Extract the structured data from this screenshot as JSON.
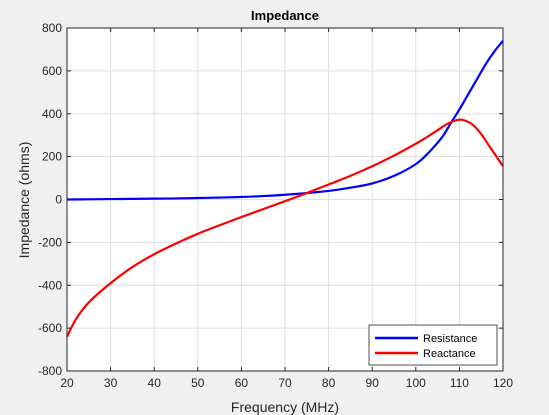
{
  "chart_data": {
    "type": "line",
    "title": "Impedance",
    "xlabel": "Frequency (MHz)",
    "ylabel": "Impedance (ohms)",
    "xlim": [
      20,
      120
    ],
    "ylim": [
      -800,
      800
    ],
    "xticks": [
      20,
      30,
      40,
      50,
      60,
      70,
      80,
      90,
      100,
      110,
      120
    ],
    "yticks": [
      -800,
      -600,
      -400,
      -200,
      0,
      200,
      400,
      600,
      800
    ],
    "grid": true,
    "legend_position": "bottom-right",
    "series": [
      {
        "name": "Resistance",
        "color": "#0000ff",
        "x": [
          20,
          25,
          30,
          35,
          40,
          45,
          50,
          55,
          60,
          65,
          70,
          75,
          80,
          85,
          90,
          95,
          100,
          103,
          106,
          108,
          110,
          112,
          114,
          116,
          118,
          120
        ],
        "y": [
          0,
          1,
          2,
          3,
          4,
          5,
          7,
          9,
          12,
          16,
          22,
          30,
          40,
          55,
          75,
          110,
          165,
          220,
          290,
          355,
          420,
          490,
          560,
          630,
          690,
          740
        ]
      },
      {
        "name": "Reactance",
        "color": "#ff0000",
        "x": [
          20,
          22,
          25,
          30,
          35,
          40,
          45,
          50,
          55,
          60,
          65,
          70,
          75,
          80,
          85,
          90,
          95,
          100,
          104,
          107,
          109,
          110,
          111,
          113,
          115,
          117,
          120
        ],
        "y": [
          -640,
          -560,
          -480,
          -390,
          -315,
          -255,
          -205,
          -160,
          -120,
          -82,
          -45,
          -8,
          30,
          70,
          110,
          155,
          205,
          260,
          310,
          350,
          368,
          372,
          370,
          350,
          305,
          245,
          155
        ]
      }
    ]
  }
}
